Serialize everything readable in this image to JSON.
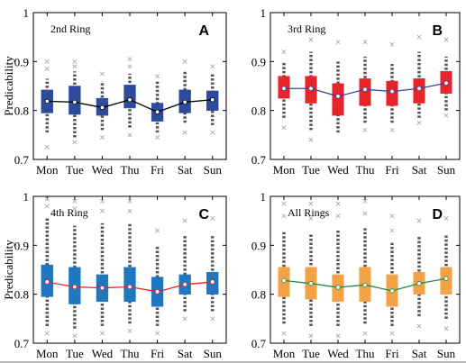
{
  "figure": {
    "ylabel": "Predicability",
    "days": [
      "Mon",
      "Tue",
      "Wed",
      "Thu",
      "Fri",
      "Sat",
      "Sun"
    ],
    "yticks": [
      "0.7",
      "0.8",
      "0.9",
      "1"
    ]
  },
  "chart_data": [
    {
      "type": "box",
      "panel": "A",
      "title": "2nd Ring",
      "ylabel": "Predicability",
      "categories": [
        "Mon",
        "Tue",
        "Wed",
        "Thu",
        "Fri",
        "Sat",
        "Sun"
      ],
      "ylim": [
        0.7,
        1.0
      ],
      "color": "#2d4b9b",
      "line_color": "#000000",
      "box_values": [
        {
          "median": 0.819,
          "q1": 0.795,
          "q3": 0.842,
          "whisker_low": 0.755,
          "whisker_high": 0.865,
          "outliers": [
            0.725,
            0.885,
            0.9
          ]
        },
        {
          "median": 0.817,
          "q1": 0.792,
          "q3": 0.85,
          "whisker_low": 0.745,
          "whisker_high": 0.88,
          "outliers": [
            0.735,
            0.89,
            0.9
          ]
        },
        {
          "median": 0.806,
          "q1": 0.79,
          "q3": 0.825,
          "whisker_low": 0.76,
          "whisker_high": 0.86,
          "outliers": [
            0.745,
            0.875
          ]
        },
        {
          "median": 0.822,
          "q1": 0.805,
          "q3": 0.852,
          "whisker_low": 0.765,
          "whisker_high": 0.875,
          "outliers": [
            0.75,
            0.89,
            0.905
          ]
        },
        {
          "median": 0.797,
          "q1": 0.778,
          "q3": 0.815,
          "whisker_low": 0.755,
          "whisker_high": 0.86,
          "outliers": [
            0.745,
            0.87
          ]
        },
        {
          "median": 0.817,
          "q1": 0.795,
          "q3": 0.842,
          "whisker_low": 0.775,
          "whisker_high": 0.88,
          "outliers": [
            0.755,
            0.9
          ]
        },
        {
          "median": 0.822,
          "q1": 0.8,
          "q3": 0.84,
          "whisker_low": 0.77,
          "whisker_high": 0.875,
          "outliers": [
            0.755,
            0.89
          ]
        }
      ]
    },
    {
      "type": "box",
      "panel": "B",
      "title": "3rd Ring",
      "ylabel": "",
      "categories": [
        "Mon",
        "Tue",
        "Wed",
        "Thu",
        "Fri",
        "Sat",
        "Sun"
      ],
      "ylim": [
        0.7,
        1.0
      ],
      "color": "#e8232a",
      "line_color": "#2d4b9b",
      "box_values": [
        {
          "median": 0.845,
          "q1": 0.825,
          "q3": 0.87,
          "whisker_low": 0.785,
          "whisker_high": 0.9,
          "outliers": [
            0.765,
            0.92
          ]
        },
        {
          "median": 0.845,
          "q1": 0.815,
          "q3": 0.87,
          "whisker_low": 0.76,
          "whisker_high": 0.92,
          "outliers": [
            0.74,
            0.945
          ]
        },
        {
          "median": 0.829,
          "q1": 0.79,
          "q3": 0.855,
          "whisker_low": 0.755,
          "whisker_high": 0.9,
          "outliers": [
            0.94
          ]
        },
        {
          "median": 0.843,
          "q1": 0.81,
          "q3": 0.865,
          "whisker_low": 0.775,
          "whisker_high": 0.91,
          "outliers": [
            0.76,
            0.94
          ]
        },
        {
          "median": 0.839,
          "q1": 0.81,
          "q3": 0.86,
          "whisker_low": 0.775,
          "whisker_high": 0.895,
          "outliers": [
            0.76,
            0.935
          ]
        },
        {
          "median": 0.845,
          "q1": 0.815,
          "q3": 0.865,
          "whisker_low": 0.785,
          "whisker_high": 0.92,
          "outliers": [
            0.775,
            0.95
          ]
        },
        {
          "median": 0.856,
          "q1": 0.835,
          "q3": 0.88,
          "whisker_low": 0.8,
          "whisker_high": 0.91,
          "outliers": [
            0.79,
            0.945
          ]
        }
      ]
    },
    {
      "type": "box",
      "panel": "C",
      "title": "4th Ring",
      "ylabel": "Predicability",
      "categories": [
        "Mon",
        "Tue",
        "Wed",
        "Thu",
        "Fri",
        "Sat",
        "Sun"
      ],
      "ylim": [
        0.7,
        1.0
      ],
      "color": "#1f77c0",
      "line_color": "#e8232a",
      "box_values": [
        {
          "median": 0.825,
          "q1": 0.795,
          "q3": 0.86,
          "whisker_low": 0.735,
          "whisker_high": 0.955,
          "outliers": [
            0.72,
            0.98,
            0.995
          ]
        },
        {
          "median": 0.815,
          "q1": 0.78,
          "q3": 0.855,
          "whisker_low": 0.73,
          "whisker_high": 0.94,
          "outliers": [
            0.715,
            0.975,
            0.99
          ]
        },
        {
          "median": 0.813,
          "q1": 0.785,
          "q3": 0.84,
          "whisker_low": 0.735,
          "whisker_high": 0.945,
          "outliers": [
            0.72,
            0.97,
            0.99
          ]
        },
        {
          "median": 0.815,
          "q1": 0.785,
          "q3": 0.855,
          "whisker_low": 0.74,
          "whisker_high": 0.945,
          "outliers": [
            0.725,
            0.97,
            0.99
          ]
        },
        {
          "median": 0.805,
          "q1": 0.775,
          "q3": 0.835,
          "whisker_low": 0.735,
          "whisker_high": 0.9,
          "outliers": [
            0.72,
            0.93
          ]
        },
        {
          "median": 0.82,
          "q1": 0.8,
          "q3": 0.84,
          "whisker_low": 0.765,
          "whisker_high": 0.92,
          "outliers": [
            0.75,
            0.95
          ]
        },
        {
          "median": 0.825,
          "q1": 0.8,
          "q3": 0.845,
          "whisker_low": 0.765,
          "whisker_high": 0.92,
          "outliers": [
            0.75,
            0.955
          ]
        }
      ]
    },
    {
      "type": "box",
      "panel": "D",
      "title": "All Rings",
      "ylabel": "",
      "categories": [
        "Mon",
        "Tue",
        "Wed",
        "Thu",
        "Fri",
        "Sat",
        "Sun"
      ],
      "ylim": [
        0.7,
        1.0
      ],
      "color": "#f5a146",
      "line_color": "#1e8a45",
      "box_values": [
        {
          "median": 0.828,
          "q1": 0.795,
          "q3": 0.855,
          "whisker_low": 0.74,
          "whisker_high": 0.93,
          "outliers": [
            0.72,
            0.96,
            0.985
          ]
        },
        {
          "median": 0.822,
          "q1": 0.79,
          "q3": 0.855,
          "whisker_low": 0.735,
          "whisker_high": 0.925,
          "outliers": [
            0.715,
            0.955,
            0.985
          ]
        },
        {
          "median": 0.814,
          "q1": 0.785,
          "q3": 0.84,
          "whisker_low": 0.735,
          "whisker_high": 0.93,
          "outliers": [
            0.715,
            0.96,
            0.985
          ]
        },
        {
          "median": 0.819,
          "q1": 0.785,
          "q3": 0.855,
          "whisker_low": 0.74,
          "whisker_high": 0.935,
          "outliers": [
            0.72,
            0.965,
            0.99
          ]
        },
        {
          "median": 0.807,
          "q1": 0.775,
          "q3": 0.84,
          "whisker_low": 0.735,
          "whisker_high": 0.905,
          "outliers": [
            0.72,
            0.93,
            0.96
          ]
        },
        {
          "median": 0.822,
          "q1": 0.8,
          "q3": 0.845,
          "whisker_low": 0.755,
          "whisker_high": 0.92,
          "outliers": [
            0.735,
            0.95
          ]
        },
        {
          "median": 0.832,
          "q1": 0.8,
          "q3": 0.855,
          "whisker_low": 0.75,
          "whisker_high": 0.92,
          "outliers": [
            0.73,
            0.955
          ]
        }
      ]
    }
  ]
}
